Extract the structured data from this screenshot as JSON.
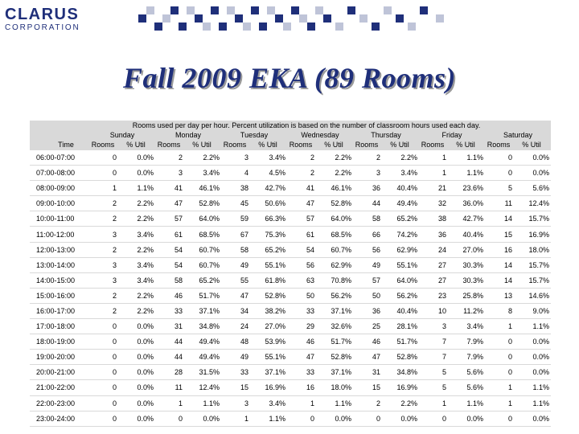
{
  "logo": {
    "main": "CLARUS",
    "sub": "CORPORATION"
  },
  "title": "Fall 2009 EKA (89 Rooms)",
  "table": {
    "note": "Rooms used per day per hour. Percent utilization is based on the number of classroom hours used each day.",
    "time_header": "Time",
    "sub_headers": {
      "rooms": "Rooms",
      "util": "% Util"
    },
    "days": [
      "Sunday",
      "Monday",
      "Tuesday",
      "Wednesday",
      "Thursday",
      "Friday",
      "Saturday"
    ],
    "rows": [
      {
        "time": "06:00-07:00",
        "cells": [
          [
            "0",
            "0.0%"
          ],
          [
            "2",
            "2.2%"
          ],
          [
            "3",
            "3.4%"
          ],
          [
            "2",
            "2.2%"
          ],
          [
            "2",
            "2.2%"
          ],
          [
            "1",
            "1.1%"
          ],
          [
            "0",
            "0.0%"
          ]
        ]
      },
      {
        "time": "07:00-08:00",
        "cells": [
          [
            "0",
            "0.0%"
          ],
          [
            "3",
            "3.4%"
          ],
          [
            "4",
            "4.5%"
          ],
          [
            "2",
            "2.2%"
          ],
          [
            "3",
            "3.4%"
          ],
          [
            "1",
            "1.1%"
          ],
          [
            "0",
            "0.0%"
          ]
        ]
      },
      {
        "time": "08:00-09:00",
        "cells": [
          [
            "1",
            "1.1%"
          ],
          [
            "41",
            "46.1%"
          ],
          [
            "38",
            "42.7%"
          ],
          [
            "41",
            "46.1%"
          ],
          [
            "36",
            "40.4%"
          ],
          [
            "21",
            "23.6%"
          ],
          [
            "5",
            "5.6%"
          ]
        ]
      },
      {
        "time": "09:00-10:00",
        "cells": [
          [
            "2",
            "2.2%"
          ],
          [
            "47",
            "52.8%"
          ],
          [
            "45",
            "50.6%"
          ],
          [
            "47",
            "52.8%"
          ],
          [
            "44",
            "49.4%"
          ],
          [
            "32",
            "36.0%"
          ],
          [
            "11",
            "12.4%"
          ]
        ]
      },
      {
        "time": "10:00-11:00",
        "cells": [
          [
            "2",
            "2.2%"
          ],
          [
            "57",
            "64.0%"
          ],
          [
            "59",
            "66.3%"
          ],
          [
            "57",
            "64.0%"
          ],
          [
            "58",
            "65.2%"
          ],
          [
            "38",
            "42.7%"
          ],
          [
            "14",
            "15.7%"
          ]
        ]
      },
      {
        "time": "11:00-12:00",
        "cells": [
          [
            "3",
            "3.4%"
          ],
          [
            "61",
            "68.5%"
          ],
          [
            "67",
            "75.3%"
          ],
          [
            "61",
            "68.5%"
          ],
          [
            "66",
            "74.2%"
          ],
          [
            "36",
            "40.4%"
          ],
          [
            "15",
            "16.9%"
          ]
        ]
      },
      {
        "time": "12:00-13:00",
        "cells": [
          [
            "2",
            "2.2%"
          ],
          [
            "54",
            "60.7%"
          ],
          [
            "58",
            "65.2%"
          ],
          [
            "54",
            "60.7%"
          ],
          [
            "56",
            "62.9%"
          ],
          [
            "24",
            "27.0%"
          ],
          [
            "16",
            "18.0%"
          ]
        ]
      },
      {
        "time": "13:00-14:00",
        "cells": [
          [
            "3",
            "3.4%"
          ],
          [
            "54",
            "60.7%"
          ],
          [
            "49",
            "55.1%"
          ],
          [
            "56",
            "62.9%"
          ],
          [
            "49",
            "55.1%"
          ],
          [
            "27",
            "30.3%"
          ],
          [
            "14",
            "15.7%"
          ]
        ]
      },
      {
        "time": "14:00-15:00",
        "cells": [
          [
            "3",
            "3.4%"
          ],
          [
            "58",
            "65.2%"
          ],
          [
            "55",
            "61.8%"
          ],
          [
            "63",
            "70.8%"
          ],
          [
            "57",
            "64.0%"
          ],
          [
            "27",
            "30.3%"
          ],
          [
            "14",
            "15.7%"
          ]
        ]
      },
      {
        "time": "15:00-16:00",
        "cells": [
          [
            "2",
            "2.2%"
          ],
          [
            "46",
            "51.7%"
          ],
          [
            "47",
            "52.8%"
          ],
          [
            "50",
            "56.2%"
          ],
          [
            "50",
            "56.2%"
          ],
          [
            "23",
            "25.8%"
          ],
          [
            "13",
            "14.6%"
          ]
        ]
      },
      {
        "time": "16:00-17:00",
        "cells": [
          [
            "2",
            "2.2%"
          ],
          [
            "33",
            "37.1%"
          ],
          [
            "34",
            "38.2%"
          ],
          [
            "33",
            "37.1%"
          ],
          [
            "36",
            "40.4%"
          ],
          [
            "10",
            "11.2%"
          ],
          [
            "8",
            "9.0%"
          ]
        ]
      },
      {
        "time": "17:00-18:00",
        "cells": [
          [
            "0",
            "0.0%"
          ],
          [
            "31",
            "34.8%"
          ],
          [
            "24",
            "27.0%"
          ],
          [
            "29",
            "32.6%"
          ],
          [
            "25",
            "28.1%"
          ],
          [
            "3",
            "3.4%"
          ],
          [
            "1",
            "1.1%"
          ]
        ]
      },
      {
        "time": "18:00-19:00",
        "cells": [
          [
            "0",
            "0.0%"
          ],
          [
            "44",
            "49.4%"
          ],
          [
            "48",
            "53.9%"
          ],
          [
            "46",
            "51.7%"
          ],
          [
            "46",
            "51.7%"
          ],
          [
            "7",
            "7.9%"
          ],
          [
            "0",
            "0.0%"
          ]
        ]
      },
      {
        "time": "19:00-20:00",
        "cells": [
          [
            "0",
            "0.0%"
          ],
          [
            "44",
            "49.4%"
          ],
          [
            "49",
            "55.1%"
          ],
          [
            "47",
            "52.8%"
          ],
          [
            "47",
            "52.8%"
          ],
          [
            "7",
            "7.9%"
          ],
          [
            "0",
            "0.0%"
          ]
        ]
      },
      {
        "time": "20:00-21:00",
        "cells": [
          [
            "0",
            "0.0%"
          ],
          [
            "28",
            "31.5%"
          ],
          [
            "33",
            "37.1%"
          ],
          [
            "33",
            "37.1%"
          ],
          [
            "31",
            "34.8%"
          ],
          [
            "5",
            "5.6%"
          ],
          [
            "0",
            "0.0%"
          ]
        ]
      },
      {
        "time": "21:00-22:00",
        "cells": [
          [
            "0",
            "0.0%"
          ],
          [
            "11",
            "12.4%"
          ],
          [
            "15",
            "16.9%"
          ],
          [
            "16",
            "18.0%"
          ],
          [
            "15",
            "16.9%"
          ],
          [
            "5",
            "5.6%"
          ],
          [
            "1",
            "1.1%"
          ]
        ]
      },
      {
        "time": "22:00-23:00",
        "cells": [
          [
            "0",
            "0.0%"
          ],
          [
            "1",
            "1.1%"
          ],
          [
            "3",
            "3.4%"
          ],
          [
            "1",
            "1.1%"
          ],
          [
            "2",
            "2.2%"
          ],
          [
            "1",
            "1.1%"
          ],
          [
            "1",
            "1.1%"
          ]
        ]
      },
      {
        "time": "23:00-24:00",
        "cells": [
          [
            "0",
            "0.0%"
          ],
          [
            "0",
            "0.0%"
          ],
          [
            "1",
            "1.1%"
          ],
          [
            "0",
            "0.0%"
          ],
          [
            "0",
            "0.0%"
          ],
          [
            "0",
            "0.0%"
          ],
          [
            "0",
            "0.0%"
          ]
        ]
      }
    ]
  },
  "colors": {
    "brand": "#1f2f7a",
    "header_bg": "#d9d9d9",
    "title_shadow": "#9a9a9a"
  }
}
